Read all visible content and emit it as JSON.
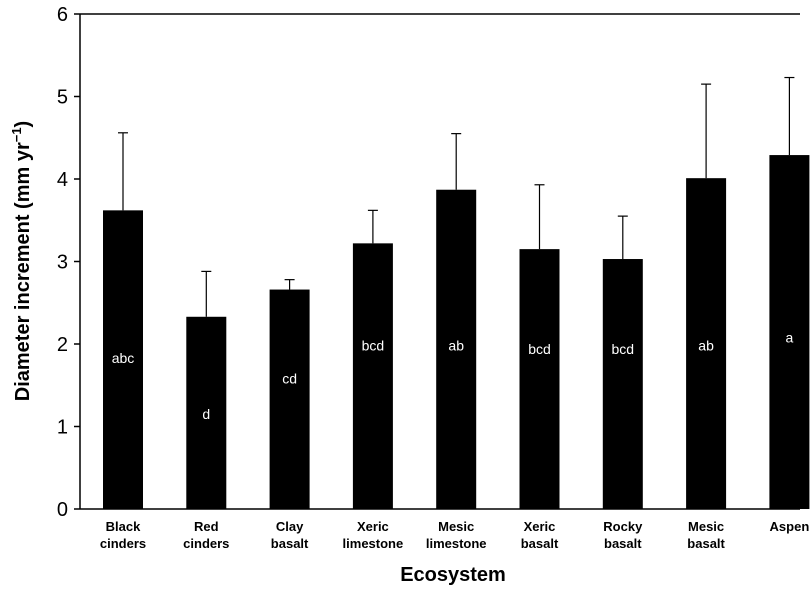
{
  "chart_data": {
    "type": "bar",
    "title": "",
    "xlabel": "Ecosystem",
    "ylabel": "Diameter increment (mm yr",
    "ylabel_superscript": "−1",
    "ylabel_close": ")",
    "ylim": [
      0,
      6
    ],
    "yticks": [
      "0",
      "1",
      "2",
      "3",
      "4",
      "5",
      "6"
    ],
    "grid": false,
    "categories": [
      [
        "Black",
        "cinders"
      ],
      [
        "Red",
        "cinders"
      ],
      [
        "Clay",
        "basalt"
      ],
      [
        "Xeric",
        "limestone"
      ],
      [
        "Mesic",
        "limestone"
      ],
      [
        "Xeric",
        "basalt"
      ],
      [
        "Rocky",
        "basalt"
      ],
      [
        "Mesic",
        "basalt"
      ],
      [
        "Aspen"
      ]
    ],
    "values": [
      3.62,
      2.33,
      2.66,
      3.22,
      3.87,
      3.15,
      3.03,
      4.01,
      4.29
    ],
    "error_upper": [
      4.56,
      2.88,
      2.78,
      3.62,
      4.55,
      3.93,
      3.55,
      5.15,
      5.23
    ],
    "significance_labels": [
      "abc",
      "d",
      "cd",
      "bcd",
      "ab",
      "bcd",
      "bcd",
      "ab",
      "a"
    ],
    "significance_label_y": [
      1.83,
      1.15,
      1.58,
      1.98,
      1.98,
      1.94,
      1.94,
      1.98,
      2.08
    ],
    "colors": {
      "bar": "#000000",
      "axis": "#000000",
      "bar_label": "#ffffff"
    }
  }
}
